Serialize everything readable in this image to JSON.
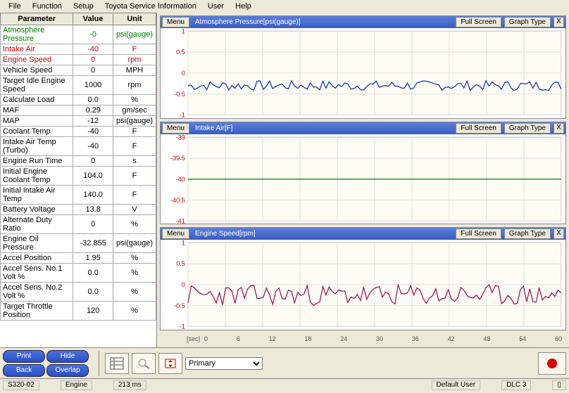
{
  "menu_items": [
    "File",
    "Function",
    "Setup",
    "Toyota Service Information",
    "User",
    "Help"
  ],
  "table": {
    "headers": [
      "Parameter",
      "Value",
      "Unit"
    ],
    "rows": [
      {
        "name": "Atmosphere Pressure",
        "value": "-0",
        "unit": "psi(gauge)",
        "color": "#008000"
      },
      {
        "name": "Intake Air",
        "value": "-40",
        "unit": "F",
        "color": "#cc0000"
      },
      {
        "name": "Engine Speed",
        "value": "0",
        "unit": "rpm",
        "color": "#cc0000"
      },
      {
        "name": "Vehicle Speed",
        "value": "0",
        "unit": "MPH",
        "color": "#000"
      },
      {
        "name": "Target Idle Engine Speed",
        "value": "1000",
        "unit": "rpm",
        "color": "#000"
      },
      {
        "name": "Calculate Load",
        "value": "0.0",
        "unit": "%",
        "color": "#000"
      },
      {
        "name": "MAF",
        "value": "0.29",
        "unit": "gm/sec",
        "color": "#000"
      },
      {
        "name": "MAP",
        "value": "-12",
        "unit": "psi(gauge)",
        "color": "#000"
      },
      {
        "name": "Coolant Temp",
        "value": "-40",
        "unit": "F",
        "color": "#000"
      },
      {
        "name": "Intake Air Temp (Turbo)",
        "value": "-40",
        "unit": "F",
        "color": "#000"
      },
      {
        "name": "Engine Run Time",
        "value": "0",
        "unit": "s",
        "color": "#000"
      },
      {
        "name": "Initial Engine Coolant Temp",
        "value": "104.0",
        "unit": "F",
        "color": "#000"
      },
      {
        "name": "Initial Intake Air Temp",
        "value": "140.0",
        "unit": "F",
        "color": "#000"
      },
      {
        "name": "Battery Voltage",
        "value": "13.8",
        "unit": "V",
        "color": "#000"
      },
      {
        "name": "Alternate Duty Ratio",
        "value": "0",
        "unit": "%",
        "color": "#000"
      },
      {
        "name": "Engine Oil Pressure",
        "value": "-32.855",
        "unit": "psi(gauge)",
        "color": "#000"
      },
      {
        "name": "Accel Position",
        "value": "1.95",
        "unit": "%",
        "color": "#000"
      },
      {
        "name": "Accel Sens. No.1 Volt %",
        "value": "0.0",
        "unit": "%",
        "color": "#000"
      },
      {
        "name": "Accel Sens. No.2 Volt %",
        "value": "0.0",
        "unit": "%",
        "color": "#000"
      },
      {
        "name": "Target Throttle Position",
        "value": "120",
        "unit": "%",
        "color": "#000"
      }
    ]
  },
  "graphs": [
    {
      "title": "Atmosphere Pressure[psi(gauge)]",
      "menu_btn": "Menu",
      "full_btn": "Full Screen",
      "type_btn": "Graph Type",
      "ymin": -1,
      "ymax": 1,
      "yticks": [
        1,
        0.5,
        0,
        -0.5,
        -1
      ],
      "series_color": "#1030d0",
      "baseline": -0.3,
      "noise": 0.12,
      "seed": 7,
      "grid_color": "#e0e0e0",
      "bg": "#fdfdf6",
      "points": 120
    },
    {
      "title": "Intake Air[F]",
      "menu_btn": "Menu",
      "full_btn": "Full Screen",
      "type_btn": "Graph Type",
      "ymin": -41,
      "ymax": -39,
      "yticks": [
        -39,
        -39.5,
        -40,
        -40.5,
        -41
      ],
      "series_color": "#008000",
      "baseline": -40,
      "noise": 0,
      "seed": 1,
      "grid_color": "#e0e0e0",
      "bg": "#fdfdf6",
      "points": 120
    },
    {
      "title": "Engine Speed[rpm]",
      "menu_btn": "Menu",
      "full_btn": "Full Screen",
      "type_btn": "Graph Type",
      "ymin": -1,
      "ymax": 1,
      "yticks": [
        1,
        0.5,
        0,
        -0.5,
        -1
      ],
      "series_color": "#a01050",
      "baseline": -0.25,
      "noise": 0.25,
      "seed": 23,
      "grid_color": "#e0e0e0",
      "bg": "#fdfdf6",
      "points": 120
    }
  ],
  "xaxis": {
    "label": "[sec]",
    "ticks": [
      "0",
      "6",
      "12",
      "18",
      "24",
      "30",
      "36",
      "42",
      "48",
      "54",
      "60"
    ]
  },
  "toolbar": {
    "buttons": [
      "Print",
      "Hide",
      "Back",
      "Overlap"
    ],
    "select": "Primary"
  },
  "statusbar": {
    "left": "S320-02",
    "engine": "Engine",
    "ms": "213 ms",
    "user": "Default User",
    "dlc": "DLC 3"
  }
}
